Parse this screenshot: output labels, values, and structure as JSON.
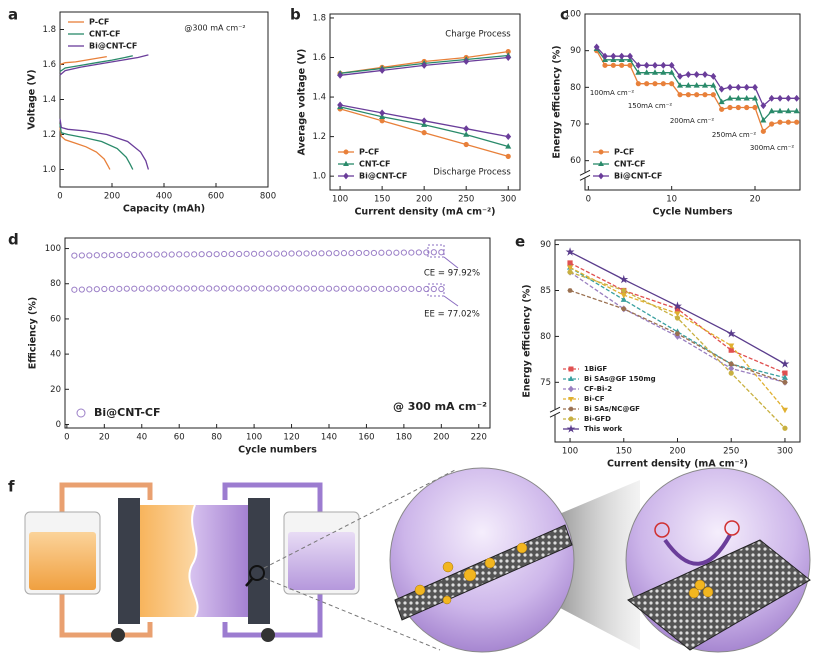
{
  "chart_data": [
    {
      "type": "line",
      "panel": "a",
      "x_label": "Capacity (mAh)",
      "y_label": "Voltage (V)",
      "annotations": [
        "@300 mA cm⁻²"
      ],
      "xlim": [
        0,
        800
      ],
      "xticks": [
        0,
        200,
        400,
        600,
        800
      ],
      "ylim": [
        0.9,
        1.9
      ],
      "yticks": [
        {
          "value": 1,
          "label": "1.0"
        },
        1.2,
        1.4,
        1.6,
        1.8
      ],
      "legend": "upper left",
      "series": [
        {
          "name": "P-CF",
          "color": "#e8803a",
          "x": [
            0,
            20,
            60,
            100,
            140,
            180,
            null,
            0,
            5,
            20,
            60,
            100,
            140,
            170,
            185,
            192
          ],
          "values": [
            1.6,
            1.61,
            1.615,
            1.625,
            1.635,
            1.645,
            null,
            1.24,
            1.19,
            1.17,
            1.15,
            1.13,
            1.1,
            1.06,
            1.02,
            1.0
          ]
        },
        {
          "name": "CNT-CF",
          "color": "#2a8a6a",
          "x": [
            0,
            20,
            80,
            140,
            200,
            250,
            280,
            null,
            0,
            5,
            30,
            100,
            160,
            220,
            255,
            270,
            280
          ],
          "values": [
            1.56,
            1.58,
            1.595,
            1.61,
            1.625,
            1.64,
            1.65,
            null,
            1.26,
            1.21,
            1.2,
            1.18,
            1.16,
            1.12,
            1.07,
            1.03,
            1.0
          ]
        },
        {
          "name": "Bi@CNT-CF",
          "color": "#6a3d9a",
          "x": [
            0,
            20,
            80,
            160,
            240,
            300,
            340,
            null,
            0,
            5,
            30,
            100,
            180,
            260,
            310,
            330,
            340
          ],
          "values": [
            1.54,
            1.565,
            1.585,
            1.605,
            1.625,
            1.64,
            1.655,
            null,
            1.29,
            1.24,
            1.23,
            1.22,
            1.2,
            1.16,
            1.1,
            1.05,
            1.0
          ]
        }
      ]
    },
    {
      "type": "line",
      "panel": "b",
      "x_label": "Current density (mA cm⁻²)",
      "y_label": "Average voltage (V)",
      "annotations": [
        "Charge Process",
        "Discharge Process"
      ],
      "x": [
        100,
        150,
        200,
        250,
        300
      ],
      "xlim": [
        88,
        314
      ],
      "xticks": [
        100,
        150,
        200,
        250,
        300
      ],
      "ylim": [
        0.93,
        1.82
      ],
      "yticks": [
        {
          "value": 1,
          "label": "1.0"
        },
        1.2,
        1.4,
        1.6,
        1.8
      ],
      "legend": "lower left",
      "series": [
        {
          "name": "P-CF",
          "color": "#e8803a",
          "marker": "circle",
          "charge": [
            1.52,
            1.55,
            1.58,
            1.6,
            1.63
          ],
          "discharge": [
            1.34,
            1.28,
            1.22,
            1.16,
            1.1
          ]
        },
        {
          "name": "CNT-CF",
          "color": "#2a8a6a",
          "marker": "triangle",
          "charge": [
            1.52,
            1.545,
            1.57,
            1.59,
            1.61
          ],
          "discharge": [
            1.35,
            1.3,
            1.26,
            1.21,
            1.15
          ]
        },
        {
          "name": "Bi@CNT-CF",
          "color": "#6a3d9a",
          "marker": "diamond",
          "charge": [
            1.51,
            1.535,
            1.56,
            1.58,
            1.6
          ],
          "discharge": [
            1.36,
            1.32,
            1.28,
            1.24,
            1.2
          ]
        }
      ]
    },
    {
      "type": "line",
      "panel": "c",
      "x_label": "Cycle Numbers",
      "y_label": "Energy efficiency (%)",
      "annotations": [
        "100mA cm⁻²",
        "150mA cm⁻²",
        "200mA cm⁻²",
        "250mA cm⁻²",
        "300mA cm⁻²"
      ],
      "x": [
        1,
        2,
        3,
        4,
        5,
        6,
        7,
        8,
        9,
        10,
        11,
        12,
        13,
        14,
        15,
        16,
        17,
        18,
        19,
        20,
        21,
        22,
        23,
        24,
        25
      ],
      "xlim": [
        -0.4,
        25.4
      ],
      "xticks": [
        0,
        10,
        20
      ],
      "ylim": [
        52,
        100
      ],
      "yticks": [
        60,
        70,
        80,
        90,
        100
      ],
      "y_break": true,
      "legend": "lower left",
      "series": [
        {
          "name": "P-CF",
          "color": "#e8803a",
          "marker": "circle",
          "values": [
            90,
            86,
            86,
            86,
            86,
            81,
            81,
            81,
            81,
            81,
            78,
            78,
            78,
            78,
            78,
            74,
            74.5,
            74.5,
            74.5,
            74.5,
            68,
            70,
            70.5,
            70.5,
            70.5
          ]
        },
        {
          "name": "CNT-CF",
          "color": "#2a8a6a",
          "marker": "triangle",
          "values": [
            90.5,
            87.5,
            87.5,
            87.5,
            87.5,
            84,
            84,
            84,
            84,
            84,
            80.5,
            80.5,
            80.5,
            80.5,
            80.5,
            76,
            77,
            77,
            77,
            77,
            71,
            73.5,
            73.5,
            73.5,
            73.5
          ]
        },
        {
          "name": "Bi@CNT-CF",
          "color": "#6a3d9a",
          "marker": "diamond",
          "values": [
            91,
            88.5,
            88.5,
            88.5,
            88.5,
            86,
            86,
            86,
            86,
            86,
            83,
            83.5,
            83.5,
            83.5,
            83,
            79.5,
            80,
            80,
            80,
            80,
            75,
            77,
            77,
            77,
            77
          ]
        }
      ]
    },
    {
      "type": "scatter",
      "panel": "d",
      "x_label": "Cycle numbers",
      "y_label": "Efficiency (%)",
      "annotations": [
        "CE = 97.92%",
        "EE = 77.02%",
        "@ 300 mA cm⁻²"
      ],
      "x": [
        4,
        8,
        12,
        16,
        20,
        24,
        28,
        32,
        36,
        40,
        44,
        48,
        52,
        56,
        60,
        64,
        68,
        72,
        76,
        80,
        84,
        88,
        92,
        96,
        100,
        104,
        108,
        112,
        116,
        120,
        124,
        128,
        132,
        136,
        140,
        144,
        148,
        152,
        156,
        160,
        164,
        168,
        172,
        176,
        180,
        184,
        188,
        192,
        196,
        200
      ],
      "xlim": [
        -1,
        226
      ],
      "xticks": [
        0,
        20,
        40,
        60,
        80,
        100,
        120,
        140,
        160,
        180,
        200,
        220
      ],
      "ylim": [
        -2,
        106
      ],
      "yticks": [
        0,
        20,
        40,
        60,
        80,
        100
      ],
      "legend": "lower left",
      "open_markers": true,
      "series": [
        {
          "name": "Bi@CNT-CF",
          "color": "#9b7fc7",
          "marker": "circle",
          "ce": [
            96.0,
            96.1,
            96.1,
            96.2,
            96.2,
            96.3,
            96.3,
            96.4,
            96.4,
            96.5,
            96.5,
            96.6,
            96.6,
            96.6,
            96.7,
            96.7,
            96.7,
            96.8,
            96.8,
            96.8,
            96.9,
            96.9,
            96.9,
            97.0,
            97.0,
            97.0,
            97.1,
            97.1,
            97.1,
            97.2,
            97.2,
            97.2,
            97.3,
            97.3,
            97.3,
            97.4,
            97.4,
            97.4,
            97.5,
            97.5,
            97.5,
            97.6,
            97.6,
            97.6,
            97.7,
            97.7,
            97.8,
            97.8,
            97.9,
            97.9
          ],
          "ee": [
            76.6,
            76.7,
            76.8,
            76.9,
            77.0,
            77.1,
            77.1,
            77.2,
            77.2,
            77.2,
            77.3,
            77.3,
            77.3,
            77.3,
            77.3,
            77.3,
            77.3,
            77.3,
            77.3,
            77.3,
            77.3,
            77.3,
            77.3,
            77.3,
            77.3,
            77.3,
            77.3,
            77.3,
            77.3,
            77.3,
            77.3,
            77.3,
            77.2,
            77.2,
            77.2,
            77.2,
            77.2,
            77.2,
            77.2,
            77.2,
            77.1,
            77.1,
            77.1,
            77.1,
            77.1,
            77.1,
            77.0,
            77.0,
            77.0,
            77.0
          ]
        }
      ]
    },
    {
      "type": "line",
      "panel": "e",
      "x_label": "Current density (mA cm⁻²)",
      "y_label": "Energy efficiency (%)",
      "x": [
        100,
        150,
        200,
        250,
        300
      ],
      "xlim": [
        86,
        314
      ],
      "xticks": [
        100,
        150,
        200,
        250,
        300
      ],
      "ylim": [
        68.5,
        90.5
      ],
      "yticks": [
        75,
        80,
        85,
        90
      ],
      "y_break": true,
      "legend": "lower left",
      "series": [
        {
          "name": "1BiGF",
          "color": "#e05050",
          "marker": "square",
          "dashed": true,
          "values": [
            88,
            85,
            83,
            78.5,
            76
          ]
        },
        {
          "name": "Bi SAs@GF 150mg",
          "color": "#3aa0a0",
          "marker": "triangle",
          "dashed": true,
          "values": [
            87.5,
            84,
            80.5,
            77,
            75.5
          ]
        },
        {
          "name": "CF-Bi-2",
          "color": "#9a7fc0",
          "marker": "diamond",
          "dashed": true,
          "values": [
            87,
            83,
            80,
            76.5,
            75
          ]
        },
        {
          "name": "Bi-CF",
          "color": "#e0b030",
          "marker": "inverted-triangle",
          "dashed": true,
          "values": [
            87.5,
            84.5,
            82.5,
            79,
            72
          ]
        },
        {
          "name": "Bi SAs/NC@GF",
          "color": "#9a7050",
          "marker": "hexagon",
          "dashed": true,
          "values": [
            85,
            83,
            80.3,
            77,
            75
          ]
        },
        {
          "name": "Bi-GFD",
          "color": "#c8b040",
          "marker": "circle",
          "dashed": true,
          "values": [
            87,
            85,
            82,
            76,
            70
          ]
        },
        {
          "name": "This work",
          "color": "#5a3c8c",
          "marker": "star",
          "values": [
            89.2,
            86.2,
            83.3,
            80.3,
            77
          ]
        }
      ]
    }
  ],
  "schematic": {
    "panel": "f"
  }
}
